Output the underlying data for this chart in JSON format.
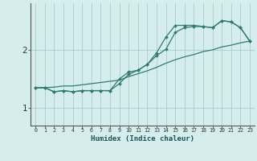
{
  "xlabel": "Humidex (Indice chaleur)",
  "x_values": [
    0,
    1,
    2,
    3,
    4,
    5,
    6,
    7,
    8,
    9,
    10,
    11,
    12,
    13,
    14,
    15,
    16,
    17,
    18,
    19,
    20,
    21,
    22,
    23
  ],
  "line1": [
    1.35,
    1.35,
    1.28,
    1.3,
    1.28,
    1.3,
    1.3,
    1.3,
    1.3,
    1.42,
    1.58,
    1.65,
    1.75,
    1.9,
    2.01,
    2.3,
    2.38,
    2.4,
    2.4,
    2.38,
    2.5,
    2.48,
    2.38,
    2.15
  ],
  "line2": [
    1.35,
    1.35,
    1.28,
    1.3,
    1.28,
    1.3,
    1.3,
    1.3,
    1.3,
    1.5,
    1.62,
    1.65,
    1.75,
    1.95,
    2.22,
    2.42,
    2.42,
    2.42,
    2.4,
    2.38,
    2.5,
    2.48,
    2.38,
    2.15
  ],
  "line3": [
    1.35,
    1.35,
    1.36,
    1.38,
    1.38,
    1.4,
    1.42,
    1.44,
    1.46,
    1.48,
    1.54,
    1.59,
    1.64,
    1.7,
    1.77,
    1.83,
    1.88,
    1.92,
    1.97,
    2.0,
    2.05,
    2.08,
    2.12,
    2.15
  ],
  "bg_color": "#d6eded",
  "grid_color": "#aacccc",
  "line_color": "#2e7d6e",
  "ylim": [
    0.7,
    2.8
  ],
  "yticks": [
    1,
    2
  ],
  "xlim": [
    -0.5,
    23.5
  ]
}
